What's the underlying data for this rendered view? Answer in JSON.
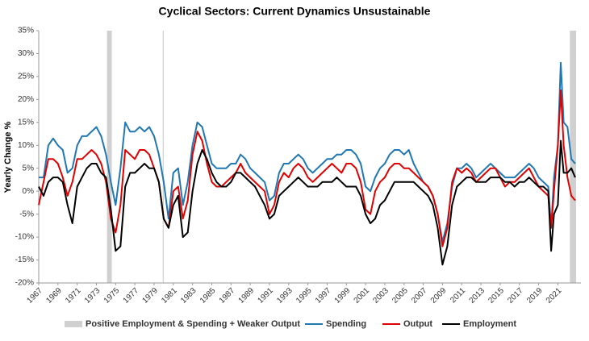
{
  "chart_data": {
    "type": "line",
    "title": "Cyclical Sectors: Current Dynamics Unsustainable",
    "y_label": "Yearly Change %",
    "xlim": [
      1967,
      2023.4
    ],
    "xticks": [
      1967,
      1969,
      1971,
      1973,
      1975,
      1977,
      1979,
      1981,
      1983,
      1985,
      1987,
      1989,
      1991,
      1993,
      1995,
      1997,
      1999,
      2001,
      2003,
      2005,
      2007,
      2009,
      2011,
      2013,
      2015,
      2017,
      2019,
      2021
    ],
    "ylim": [
      -20,
      35
    ],
    "yticks": [
      {
        "value": -20,
        "label": "-20%"
      },
      {
        "value": -15,
        "label": "-15%"
      },
      {
        "value": -10,
        "label": "-10%"
      },
      {
        "value": -5,
        "label": "-5%"
      },
      {
        "value": 0,
        "label": "0%"
      },
      {
        "value": 5,
        "label": "5%"
      },
      {
        "value": 10,
        "label": "10%"
      },
      {
        "value": 15,
        "label": "15%"
      },
      {
        "value": 20,
        "label": "20%"
      },
      {
        "value": 25,
        "label": "25%"
      },
      {
        "value": 30,
        "label": "30%"
      },
      {
        "value": 35,
        "label": "35%"
      }
    ],
    "bands": {
      "name": "Positive Employment & Spending + Weaker Output",
      "color": "#d0d0d0",
      "ranges": [
        [
          1974.1,
          1974.6
        ],
        [
          1979.9,
          1980.0
        ],
        [
          2022.25,
          2022.9
        ]
      ]
    },
    "x": [
      1967,
      1967.5,
      1968,
      1968.5,
      1969,
      1969.5,
      1970,
      1970.5,
      1971,
      1971.5,
      1972,
      1972.5,
      1973,
      1973.5,
      1974,
      1974.5,
      1975,
      1975.5,
      1976,
      1976.5,
      1977,
      1977.5,
      1978,
      1978.5,
      1979,
      1979.5,
      1980,
      1980.5,
      1981,
      1981.5,
      1982,
      1982.5,
      1983,
      1983.5,
      1984,
      1984.5,
      1985,
      1985.5,
      1986,
      1986.5,
      1987,
      1987.5,
      1988,
      1988.5,
      1989,
      1989.5,
      1990,
      1990.5,
      1991,
      1991.5,
      1992,
      1992.5,
      1993,
      1993.5,
      1994,
      1994.5,
      1995,
      1995.5,
      1996,
      1996.5,
      1997,
      1997.5,
      1998,
      1998.5,
      1999,
      1999.5,
      2000,
      2000.5,
      2001,
      2001.5,
      2002,
      2002.5,
      2003,
      2003.5,
      2004,
      2004.5,
      2005,
      2005.5,
      2006,
      2006.5,
      2007,
      2007.5,
      2008,
      2008.5,
      2009,
      2009.5,
      2010,
      2010.5,
      2011,
      2011.5,
      2012,
      2012.5,
      2013,
      2013.5,
      2014,
      2014.5,
      2015,
      2015.5,
      2016,
      2016.5,
      2017,
      2017.5,
      2018,
      2018.5,
      2019,
      2019.5,
      2020,
      2020.3,
      2020.6,
      2021,
      2021.3,
      2021.6,
      2022,
      2022.4,
      2022.8
    ],
    "series": [
      {
        "name": "Spending",
        "color": "#1f77b4",
        "values": [
          3,
          3,
          10,
          11.5,
          10,
          9,
          4,
          5,
          10,
          12,
          12,
          13,
          14,
          12,
          8,
          2,
          -3,
          5,
          15,
          13,
          13,
          14,
          13,
          14,
          12,
          8,
          2,
          -6,
          4,
          5,
          -3,
          2,
          10,
          15,
          14,
          10,
          6,
          5,
          5,
          5,
          6,
          6,
          8,
          7,
          5,
          4,
          3,
          2,
          -2,
          -1,
          4,
          6,
          6,
          7,
          8,
          7,
          5,
          4,
          5,
          6,
          7,
          7,
          8,
          8,
          9,
          9,
          8,
          6,
          1,
          0,
          3,
          5,
          6,
          8,
          9,
          9,
          8,
          9,
          6,
          4,
          2,
          1,
          -1,
          -5,
          -11,
          -7,
          1,
          5,
          5,
          6,
          5,
          3,
          4,
          5,
          6,
          5,
          4,
          3,
          3,
          3,
          4,
          5,
          6,
          5,
          3,
          2,
          1,
          -8,
          3,
          10,
          28,
          15,
          14,
          7,
          6
        ]
      },
      {
        "name": "Output",
        "color": "#e00000",
        "values": [
          -3,
          2,
          7,
          7,
          6,
          3,
          -1,
          2,
          7,
          7,
          8,
          9,
          8,
          6,
          2,
          -6,
          -9,
          -3,
          9,
          8,
          7,
          9,
          9,
          8,
          5,
          2,
          -6,
          -8,
          0,
          1,
          -6,
          -2,
          8,
          13,
          11,
          6,
          2,
          1,
          1,
          2,
          3,
          4,
          6,
          4,
          3,
          2,
          1,
          0,
          -5,
          -3,
          2,
          4,
          3,
          5,
          6,
          5,
          3,
          2,
          3,
          4,
          5,
          6,
          5,
          4,
          6,
          6,
          5,
          2,
          -4,
          -5,
          0,
          2,
          3,
          5,
          6,
          6,
          5,
          5,
          4,
          3,
          2,
          1,
          -1,
          -5,
          -12,
          -8,
          2,
          5,
          4,
          5,
          4,
          2,
          3,
          4,
          5,
          5,
          3,
          1,
          2,
          2,
          3,
          4,
          5,
          3,
          1,
          0,
          -1,
          -8,
          0,
          10,
          22,
          10,
          3,
          -1,
          -2
        ]
      },
      {
        "name": "Employment",
        "color": "#000000",
        "values": [
          1,
          -1,
          2,
          3,
          3,
          2,
          -3,
          -7,
          1,
          3,
          5,
          6,
          6,
          4,
          3,
          -4,
          -13,
          -12,
          1,
          4,
          4,
          5,
          6,
          5,
          5,
          2,
          -6,
          -8,
          -3,
          -1,
          -10,
          -9,
          0,
          6,
          9,
          7,
          4,
          2,
          1,
          1,
          2,
          4,
          4,
          3,
          2,
          1,
          -1,
          -3,
          -6,
          -5,
          -1,
          0,
          1,
          2,
          3,
          2,
          1,
          1,
          1,
          2,
          2,
          2,
          3,
          2,
          1,
          1,
          1,
          -1,
          -5,
          -7,
          -6,
          -3,
          -2,
          0,
          2,
          2,
          2,
          2,
          2,
          1,
          0,
          -1,
          -3,
          -8,
          -16,
          -12,
          -3,
          1,
          2,
          3,
          3,
          2,
          2,
          2,
          3,
          3,
          3,
          2,
          2,
          1,
          2,
          2,
          3,
          2,
          1,
          1,
          0,
          -13,
          -5,
          -3,
          11,
          4,
          4,
          5,
          3
        ]
      }
    ]
  }
}
